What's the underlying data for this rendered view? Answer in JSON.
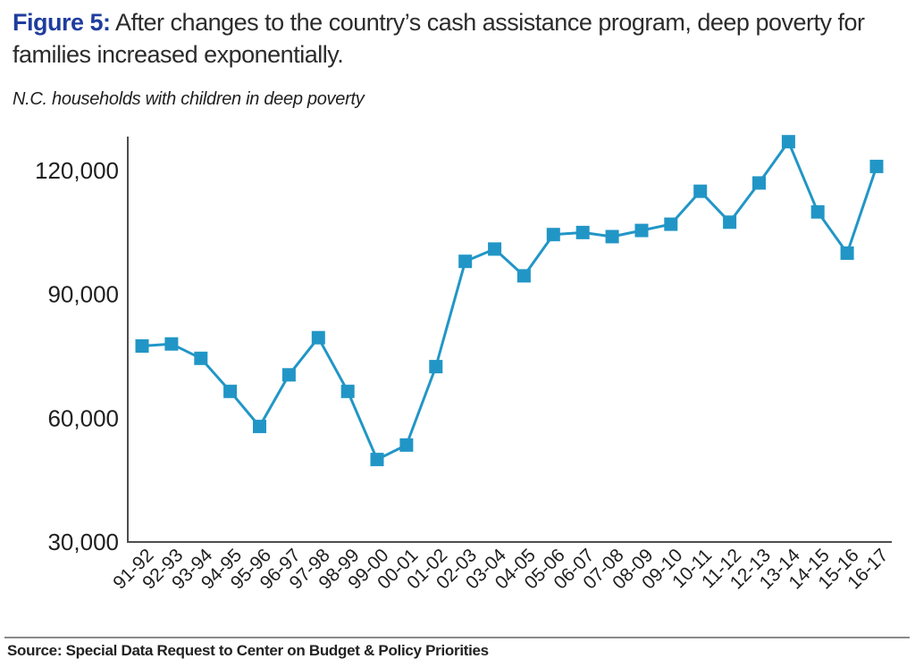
{
  "figure": {
    "label": "Figure 5:",
    "title": "After changes to the country’s cash assistance program, deep poverty for families increased exponentially.",
    "subtitle": "N.C. households with children in deep poverty",
    "source": "Source: Special Data Request to Center on Budget & Policy Priorities"
  },
  "chart_data": {
    "type": "line",
    "title": "N.C. households with children in deep poverty",
    "xlabel": "",
    "ylabel": "",
    "categories": [
      "91-92",
      "92-93",
      "93-94",
      "94-95",
      "95-96",
      "96-97",
      "97-98",
      "98-99",
      "99-00",
      "00-01",
      "01-02",
      "02-03",
      "03-04",
      "04-05",
      "05-06",
      "06-07",
      "07-08",
      "08-09",
      "09-10",
      "10-11",
      "11-12",
      "12-13",
      "13-14",
      "14-15",
      "15-16",
      "16-17"
    ],
    "series": [
      {
        "name": "N.C. households with children in deep poverty",
        "values": [
          77500,
          78000,
          74500,
          66500,
          58000,
          70500,
          79500,
          66500,
          50000,
          53500,
          72500,
          98000,
          101000,
          94500,
          104500,
          105000,
          104000,
          105500,
          107000,
          115000,
          107500,
          117000,
          127000,
          110000,
          100000,
          121000
        ]
      }
    ],
    "ylim": [
      30000,
      127800
    ],
    "yticks": [
      30000,
      60000,
      90000,
      120000
    ],
    "ytick_labels": [
      "30,000",
      "60,000",
      "90,000",
      "120,000"
    ],
    "grid": false,
    "legend_position": "none",
    "marker": "square",
    "line_color": "#2196c6",
    "marker_color": "#2196c6",
    "axis_color": "#4d4d4f",
    "text_color": "#1f1f1f",
    "accent_color": "#1f3d9e"
  }
}
